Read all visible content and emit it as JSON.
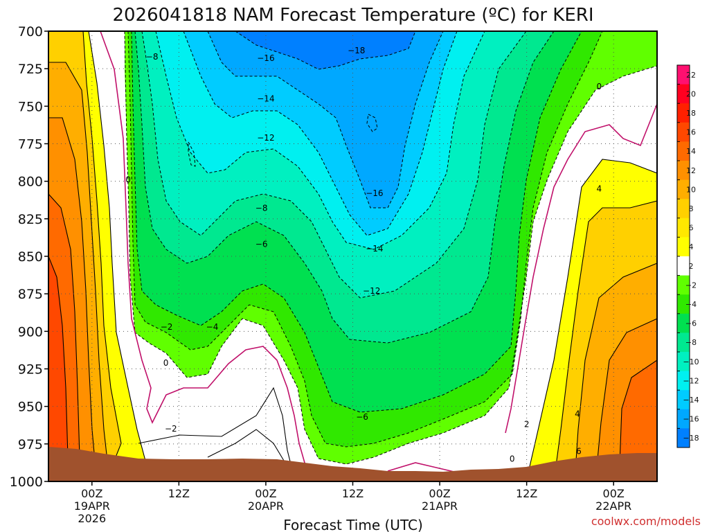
{
  "chart_data": {
    "type": "contour",
    "title": "2026041818 NAM Forecast Temperature (ºC) for KERI",
    "xlabel": "Forecast Time (UTC)",
    "credit": "coolwx.com/models",
    "y_ticks": [
      "700",
      "725",
      "750",
      "775",
      "800",
      "825",
      "850",
      "875",
      "900",
      "925",
      "950",
      "975",
      "1000"
    ],
    "y_values": [
      700,
      725,
      750,
      775,
      800,
      825,
      850,
      875,
      900,
      925,
      950,
      975,
      1000
    ],
    "ylim": [
      1000,
      700
    ],
    "x_hours": [
      6,
      18,
      30,
      42,
      54,
      66,
      78
    ],
    "xlim": [
      0,
      84
    ],
    "x_ticks": [
      {
        "hour": 6,
        "line1": "00Z",
        "line2": "19APR",
        "line3": "2026"
      },
      {
        "hour": 18,
        "line1": "12Z",
        "line2": "",
        "line3": ""
      },
      {
        "hour": 30,
        "line1": "00Z",
        "line2": "20APR",
        "line3": ""
      },
      {
        "hour": 42,
        "line1": "12Z",
        "line2": "",
        "line3": ""
      },
      {
        "hour": 54,
        "line1": "00Z",
        "line2": "21APR",
        "line3": ""
      },
      {
        "hour": 66,
        "line1": "12Z",
        "line2": "",
        "line3": ""
      },
      {
        "hour": 78,
        "line1": "00Z",
        "line2": "22APR",
        "line3": ""
      }
    ],
    "grid": true,
    "colorbar": {
      "placement": "right",
      "levels": [
        22,
        20,
        18,
        16,
        14,
        12,
        10,
        8,
        6,
        4,
        2,
        -2,
        -4,
        -6,
        -8,
        -10,
        -12,
        -14,
        -16,
        -18
      ],
      "labels": [
        "22",
        "20",
        "18",
        "16",
        "14",
        "12",
        "10",
        "8",
        "6",
        "4",
        "2",
        "−2",
        "−4",
        "−6",
        "−8",
        "−10",
        "−12",
        "−14",
        "−16",
        "−18"
      ],
      "colors": [
        "#ff1070",
        "#ff0020",
        "#ff2000",
        "#ff4800",
        "#ff6a00",
        "#ff9000",
        "#ffae00",
        "#ffd000",
        "#ffe800",
        "#ffff00",
        "#ffffff",
        "#60ff00",
        "#30e800",
        "#00e050",
        "#00e890",
        "#00f0c0",
        "#00f0f0",
        "#00ccff",
        "#00a8ff",
        "#0080ff"
      ]
    },
    "contour_labels": [
      {
        "text": "−18",
        "hour": 42.5,
        "p": 713
      },
      {
        "text": "−16",
        "hour": 30.0,
        "p": 718
      },
      {
        "text": "−8",
        "hour": 14.3,
        "p": 717
      },
      {
        "text": "−14",
        "hour": 30.0,
        "p": 745
      },
      {
        "text": "−12",
        "hour": 30.0,
        "p": 771
      },
      {
        "text": "−16",
        "hour": 45.0,
        "p": 808
      },
      {
        "text": "−8",
        "hour": 29.4,
        "p": 818
      },
      {
        "text": "−6",
        "hour": 29.4,
        "p": 842
      },
      {
        "text": "−14",
        "hour": 45.0,
        "p": 845
      },
      {
        "text": "−12",
        "hour": 44.6,
        "p": 873
      },
      {
        "text": "−4",
        "hour": 22.6,
        "p": 897
      },
      {
        "text": "−2",
        "hour": 16.3,
        "p": 897
      },
      {
        "text": "0",
        "hour": 16.2,
        "p": 921
      },
      {
        "text": "−6",
        "hour": 43.3,
        "p": 957
      },
      {
        "text": "−2",
        "hour": 16.9,
        "p": 965
      },
      {
        "text": "0",
        "hour": 11.0,
        "p": 799
      },
      {
        "text": "0",
        "hour": 76.0,
        "p": 737
      },
      {
        "text": "4",
        "hour": 76.0,
        "p": 805
      },
      {
        "text": "4",
        "hour": 73.0,
        "p": 955
      },
      {
        "text": "2",
        "hour": 66.0,
        "p": 962
      },
      {
        "text": "0",
        "hour": 64.0,
        "p": 985
      },
      {
        "text": "6",
        "hour": 73.2,
        "p": 980
      }
    ]
  }
}
